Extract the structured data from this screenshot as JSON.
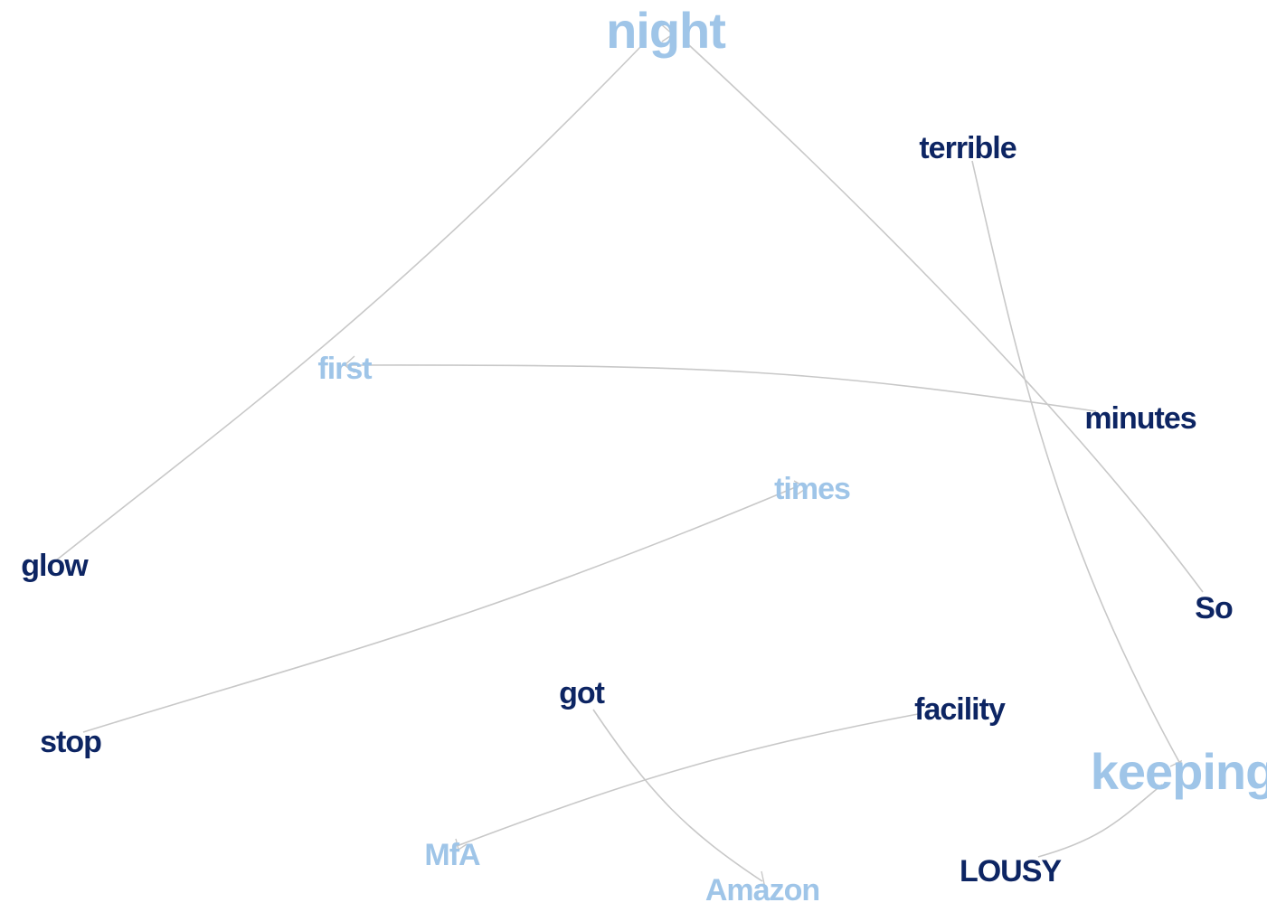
{
  "colors": {
    "dark_word": "#0d2563",
    "light_word": "#9fc5e8",
    "edge": "#c8c8c8"
  },
  "words": [
    {
      "id": "night",
      "text": "night",
      "tone": "light"
    },
    {
      "id": "terrible",
      "text": "terrible",
      "tone": "dark"
    },
    {
      "id": "first",
      "text": "first",
      "tone": "light"
    },
    {
      "id": "minutes",
      "text": "minutes",
      "tone": "dark"
    },
    {
      "id": "times",
      "text": "times",
      "tone": "light"
    },
    {
      "id": "glow",
      "text": "glow",
      "tone": "dark"
    },
    {
      "id": "So",
      "text": "So",
      "tone": "dark"
    },
    {
      "id": "got",
      "text": "got",
      "tone": "dark"
    },
    {
      "id": "facility",
      "text": "facility",
      "tone": "dark"
    },
    {
      "id": "stop",
      "text": "stop",
      "tone": "dark"
    },
    {
      "id": "keeping",
      "text": "keeping",
      "tone": "light"
    },
    {
      "id": "MfA",
      "text": "MfA",
      "tone": "light"
    },
    {
      "id": "LOUSY",
      "text": "LOUSY",
      "tone": "dark"
    },
    {
      "id": "Amazon",
      "text": "Amazon",
      "tone": "light"
    }
  ],
  "edges": [
    {
      "from": "glow",
      "to": "night"
    },
    {
      "from": "So",
      "to": "night"
    },
    {
      "from": "minutes",
      "to": "first"
    },
    {
      "from": "stop",
      "to": "times"
    },
    {
      "from": "terrible",
      "to": "keeping"
    },
    {
      "from": "LOUSY",
      "to": "keeping"
    },
    {
      "from": "facility",
      "to": "MfA"
    },
    {
      "from": "got",
      "to": "Amazon"
    }
  ]
}
